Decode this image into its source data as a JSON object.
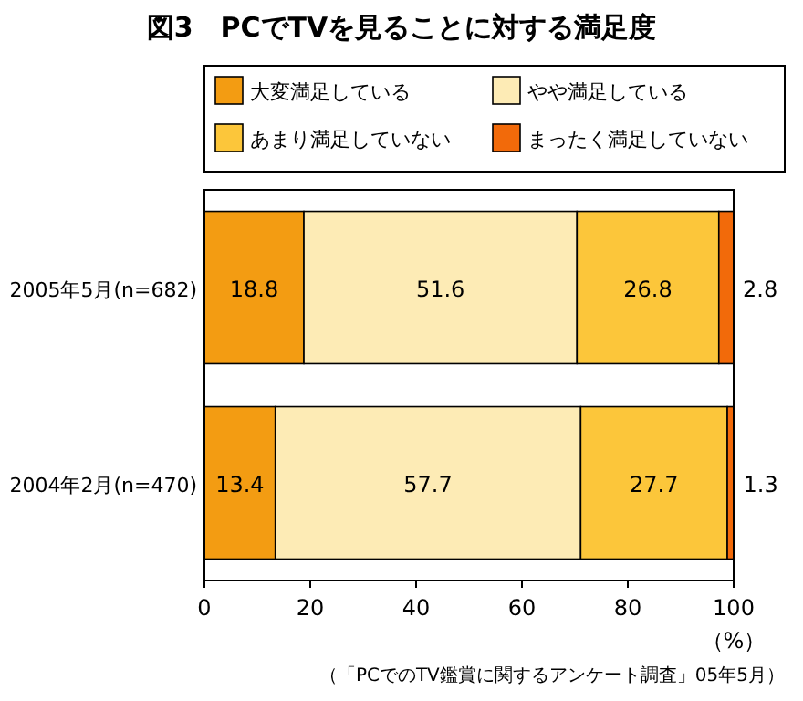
{
  "chart_data": {
    "type": "bar",
    "orientation": "horizontal",
    "stacked": true,
    "title": "図3　PCでTVを見ることに対する満足度",
    "categories": [
      "2005年5月(n=682)",
      "2004年2月(n=470)"
    ],
    "series": [
      {
        "name": "大変満足している",
        "color": "#f39c12",
        "values": [
          18.8,
          13.4
        ]
      },
      {
        "name": "やや満足している",
        "color": "#fdebb5",
        "values": [
          51.6,
          57.7
        ]
      },
      {
        "name": "あまり満足していない",
        "color": "#fcc63a",
        "values": [
          26.8,
          27.7
        ]
      },
      {
        "name": "まったく満足していない",
        "color": "#f26a0a",
        "values": [
          2.8,
          1.3
        ]
      }
    ],
    "xlim": [
      0,
      100
    ],
    "xticks": [
      0,
      20,
      40,
      60,
      80,
      100
    ],
    "xlabel": "（%）",
    "data_labels": true,
    "legend": "top",
    "grid": false,
    "annotations": [
      "（「PCでのTV鑑賞に関するアンケート調査」05年5月）"
    ]
  }
}
